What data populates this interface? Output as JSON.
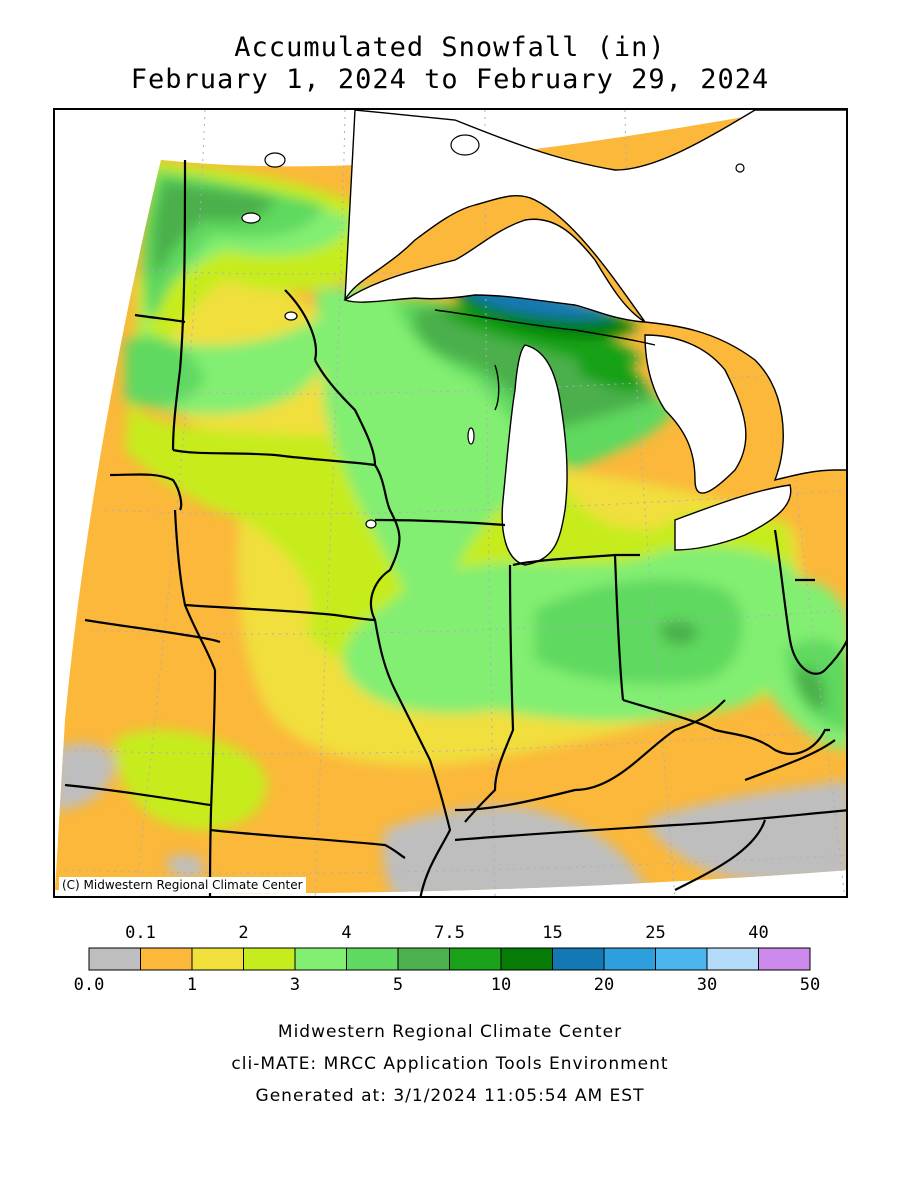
{
  "title": {
    "line1": "Accumulated Snowfall (in)",
    "line2": "February 1, 2024 to February 29, 2024"
  },
  "map": {
    "copyright": "(C) Midwestern Regional Climate Center",
    "colors": {
      "water": "#ffffff",
      "boundary": "#000000",
      "graticule": "#b0a8c8"
    }
  },
  "legend": {
    "bins": [
      {
        "color": "#bebebe"
      },
      {
        "color": "#fbb83a"
      },
      {
        "color": "#f1df3c"
      },
      {
        "color": "#c6ec1e"
      },
      {
        "color": "#82ee72"
      },
      {
        "color": "#5fd95f"
      },
      {
        "color": "#4cb04c"
      },
      {
        "color": "#19a119"
      },
      {
        "color": "#067b06"
      },
      {
        "color": "#1478b4"
      },
      {
        "color": "#2c9fdc"
      },
      {
        "color": "#4bb6ee"
      },
      {
        "color": "#b3dbf9"
      },
      {
        "color": "#cc8bec"
      }
    ],
    "top_labels": [
      "0.1",
      "2",
      "4",
      "7.5",
      "15",
      "25",
      "40"
    ],
    "bottom_labels": [
      "0.0",
      "1",
      "3",
      "5",
      "10",
      "20",
      "30",
      "50"
    ]
  },
  "credits": {
    "line1": "Midwestern Regional Climate Center",
    "line2": "cli-MATE: MRCC Application Tools Environment",
    "line3": "Generated at: 3/1/2024 11:05:54 AM EST"
  }
}
